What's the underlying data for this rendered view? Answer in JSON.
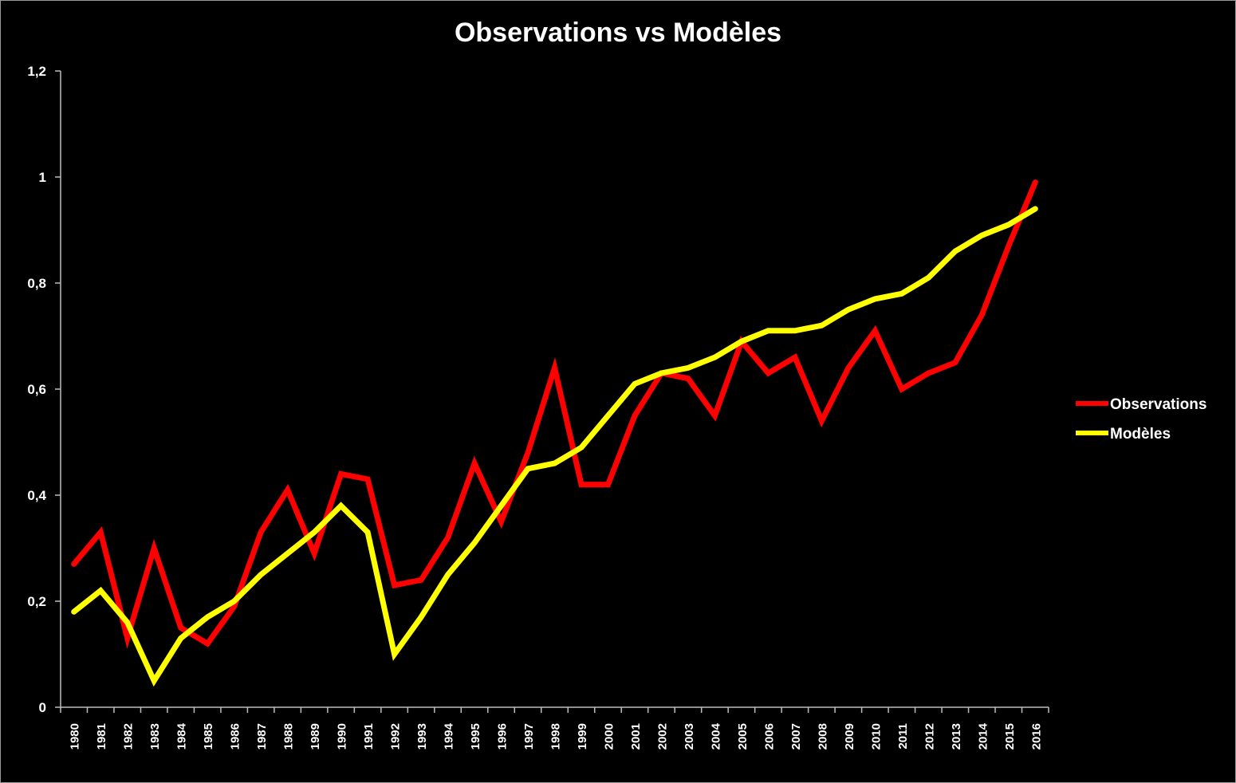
{
  "chart_data": {
    "type": "line",
    "title": "Observations vs Modèles",
    "xlabel": "",
    "ylabel": "",
    "categories": [
      "1980",
      "1981",
      "1982",
      "1983",
      "1984",
      "1985",
      "1986",
      "1987",
      "1988",
      "1989",
      "1990",
      "1991",
      "1992",
      "1993",
      "1994",
      "1995",
      "1996",
      "1997",
      "1998",
      "1999",
      "2000",
      "2001",
      "2002",
      "2003",
      "2004",
      "2005",
      "2006",
      "2007",
      "2008",
      "2009",
      "2010",
      "2011",
      "2012",
      "2013",
      "2014",
      "2015",
      "2016"
    ],
    "ylim": [
      0,
      1.2
    ],
    "yticks": [
      0,
      0.2,
      0.4,
      0.6,
      0.8,
      1,
      1.2
    ],
    "ytick_labels": [
      "0",
      "0,2",
      "0,4",
      "0,6",
      "0,8",
      "1",
      "1,2"
    ],
    "grid": false,
    "legend_position": "right",
    "series": [
      {
        "name": "Observations",
        "color": "#ff0000",
        "values": [
          0.27,
          0.33,
          0.13,
          0.3,
          0.15,
          0.12,
          0.19,
          0.33,
          0.41,
          0.29,
          0.44,
          0.43,
          0.23,
          0.24,
          0.32,
          0.46,
          0.35,
          0.48,
          0.64,
          0.42,
          0.42,
          0.55,
          0.63,
          0.62,
          0.55,
          0.69,
          0.63,
          0.66,
          0.54,
          0.64,
          0.71,
          0.6,
          0.63,
          0.65,
          0.74,
          0.87,
          0.99
        ]
      },
      {
        "name": "Modèles",
        "color": "#ffff00",
        "values": [
          0.18,
          0.22,
          0.16,
          0.05,
          0.13,
          0.17,
          0.2,
          0.25,
          0.29,
          0.33,
          0.38,
          0.33,
          0.1,
          0.17,
          0.25,
          0.31,
          0.38,
          0.45,
          0.46,
          0.49,
          0.55,
          0.61,
          0.63,
          0.64,
          0.66,
          0.69,
          0.71,
          0.71,
          0.72,
          0.75,
          0.77,
          0.78,
          0.81,
          0.86,
          0.89,
          0.91,
          0.94
        ]
      }
    ]
  }
}
